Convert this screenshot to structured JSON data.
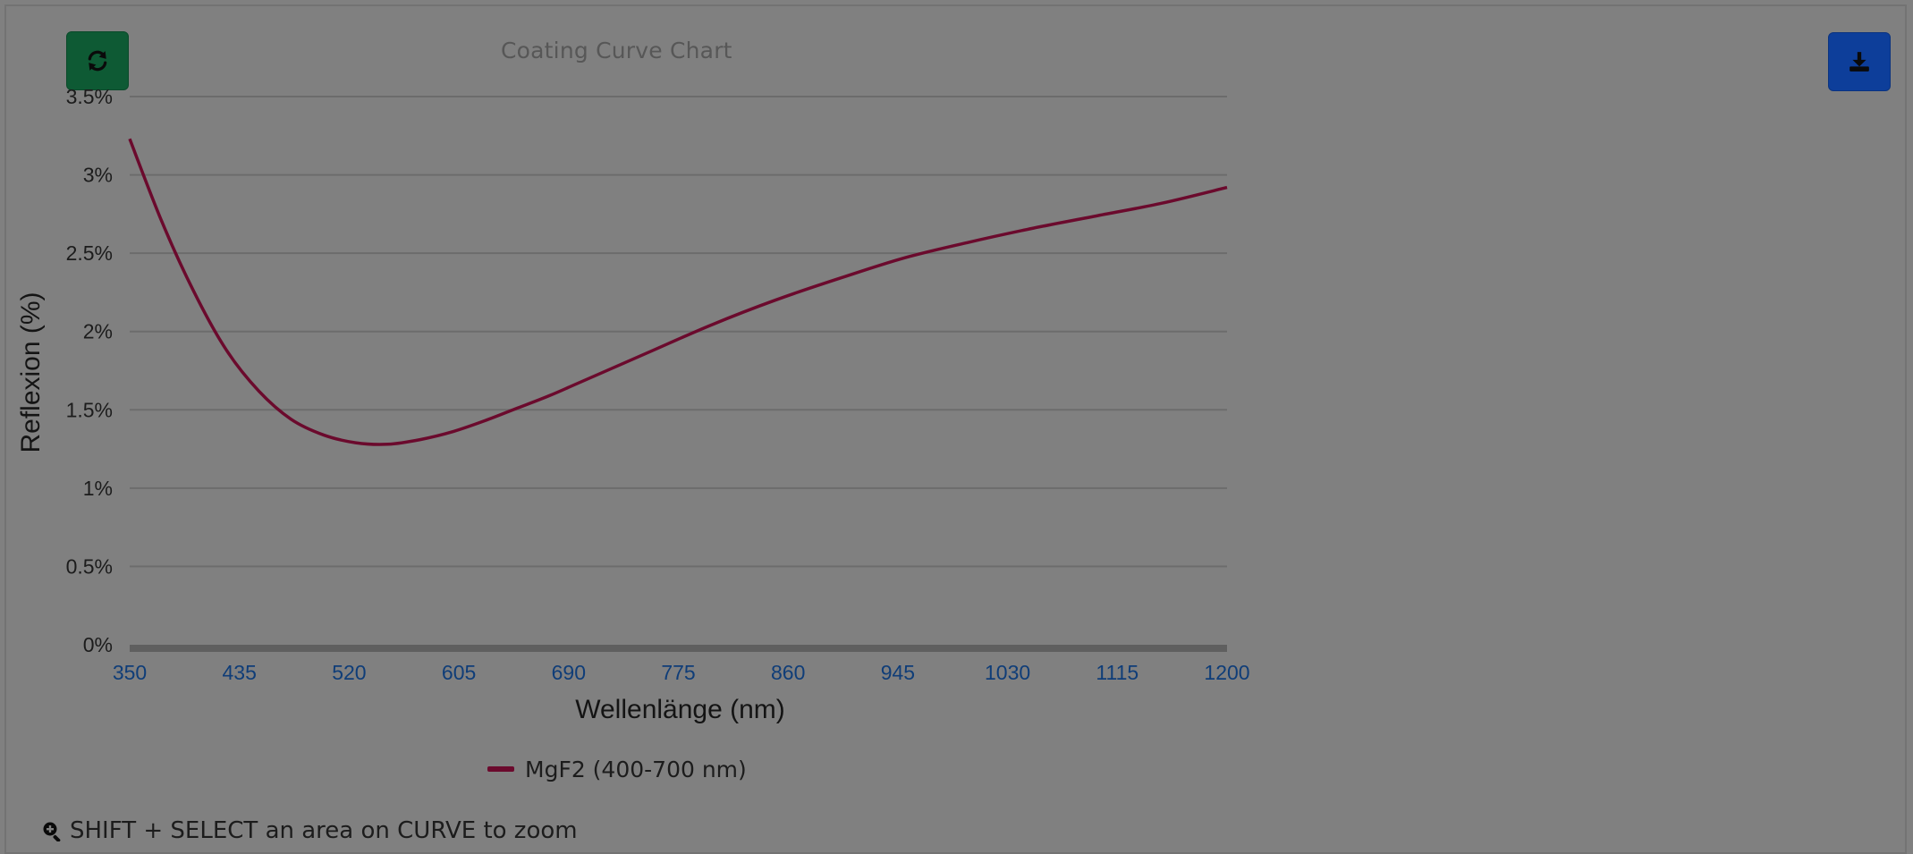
{
  "toolbar": {
    "refresh_icon": "refresh-icon",
    "download_icon": "download-icon"
  },
  "zoom_hint": {
    "icon": "zoom-in-icon",
    "text": "SHIFT + SELECT an area on CURVE to zoom"
  },
  "colors": {
    "series": "#6b0a2d",
    "tick_x": "#0f3d78",
    "grid": "#6c6c6c",
    "refresh_button": "#0e5a34",
    "download_button": "#0d3e9a"
  },
  "chart_data": {
    "type": "line",
    "title": "Coating Curve Chart",
    "xlabel": "Wellenlänge (nm)",
    "ylabel": "Reflexion (%)",
    "xlim": [
      350,
      1200
    ],
    "ylim": [
      0,
      3.5
    ],
    "x_ticks": [
      "350",
      "435",
      "520",
      "605",
      "690",
      "775",
      "860",
      "945",
      "1030",
      "1115",
      "1200"
    ],
    "y_ticks": [
      "0%",
      "0.5%",
      "1%",
      "1.5%",
      "2%",
      "2.5%",
      "3%",
      "3.5%"
    ],
    "grid": true,
    "legend_position": "bottom-center",
    "series": [
      {
        "name": "MgF2 (400-700 nm)",
        "x": [
          350,
          375,
          400,
          425,
          450,
          475,
          500,
          525,
          550,
          575,
          600,
          625,
          650,
          675,
          700,
          750,
          800,
          850,
          900,
          950,
          1000,
          1050,
          1100,
          1150,
          1200
        ],
        "values": [
          3.23,
          2.7,
          2.25,
          1.88,
          1.62,
          1.44,
          1.34,
          1.29,
          1.28,
          1.31,
          1.36,
          1.43,
          1.51,
          1.59,
          1.68,
          1.86,
          2.04,
          2.2,
          2.34,
          2.47,
          2.57,
          2.66,
          2.74,
          2.82,
          2.92
        ]
      }
    ]
  }
}
